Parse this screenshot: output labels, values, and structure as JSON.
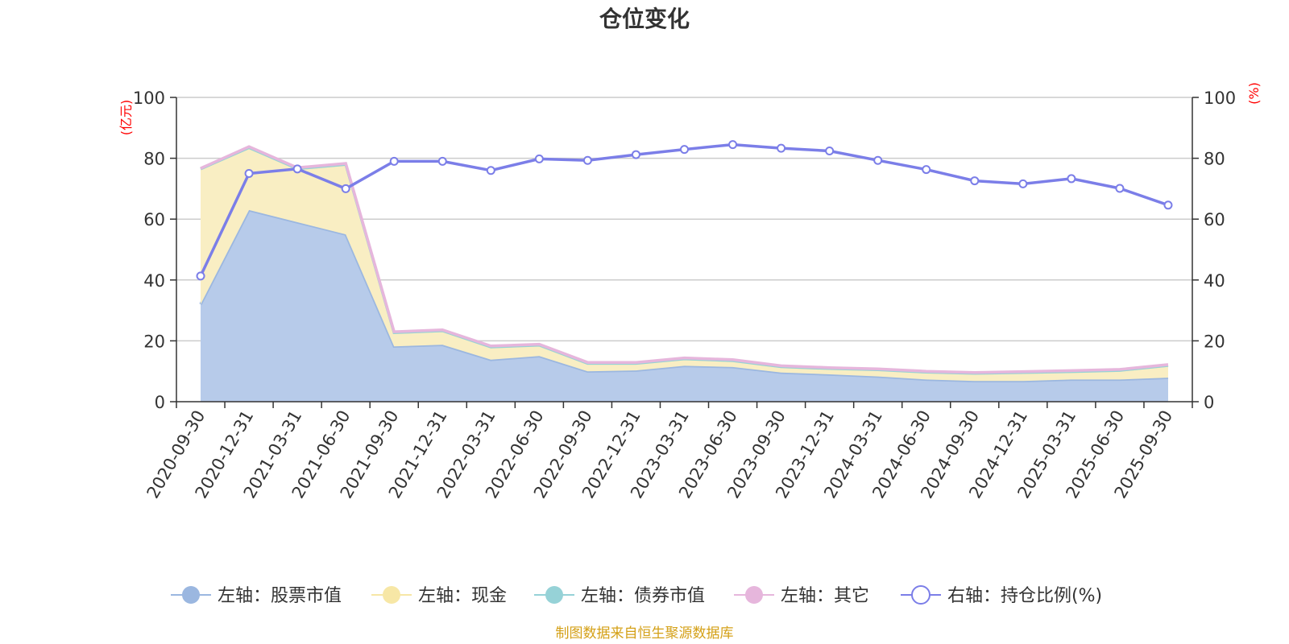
{
  "chart_data": {
    "type": "area",
    "title": "仓位变化",
    "left_unit": "(亿元)",
    "right_unit": "(%)",
    "categories": [
      "2020-09-30",
      "2020-12-31",
      "2021-03-31",
      "2021-06-30",
      "2021-09-30",
      "2021-12-31",
      "2022-03-31",
      "2022-06-30",
      "2022-09-30",
      "2022-12-31",
      "2023-03-31",
      "2023-06-30",
      "2023-09-30",
      "2023-12-31",
      "2024-03-31",
      "2024-06-30",
      "2024-09-30",
      "2024-12-31",
      "2025-03-31",
      "2025-06-30",
      "2025-09-30"
    ],
    "left_ylim": [
      0,
      100
    ],
    "left_yticks": [
      0,
      20,
      40,
      60,
      80,
      100
    ],
    "right_ylim": [
      0,
      100
    ],
    "right_yticks": [
      0,
      20,
      40,
      60,
      80,
      100
    ],
    "series": [
      {
        "name": "左轴：股票市值",
        "axis": "left",
        "stack": true,
        "color": "#9bb7e0",
        "fill": "#b7cbea",
        "values": [
          32,
          63,
          59,
          55,
          18.2,
          18.7,
          13.8,
          15,
          10,
          10.3,
          11.8,
          11.4,
          9.6,
          9,
          8.3,
          7.3,
          6.8,
          6.8,
          7.3,
          7.3,
          7.9
        ]
      },
      {
        "name": "左轴：现金",
        "axis": "left",
        "stack": true,
        "color": "#f7e7a6",
        "fill": "#f9eec3",
        "values": [
          44.5,
          20.5,
          17.6,
          23,
          4.5,
          4.6,
          4.2,
          3.6,
          2.6,
          2.3,
          2.3,
          2.1,
          1.9,
          1.9,
          2.2,
          2.4,
          2.5,
          2.8,
          2.6,
          3,
          4
        ]
      },
      {
        "name": "左轴：债券市值",
        "axis": "left",
        "stack": true,
        "color": "#96d2d7",
        "fill": "#b5e1e4",
        "values": [
          0,
          0,
          0,
          0,
          0,
          0,
          0,
          0,
          0,
          0,
          0,
          0,
          0,
          0,
          0,
          0,
          0,
          0,
          0,
          0,
          0
        ]
      },
      {
        "name": "左轴：其它",
        "axis": "left",
        "stack": true,
        "color": "#e6b6dc",
        "fill": "#f0d2ea",
        "values": [
          0.2,
          0.3,
          0.3,
          0.3,
          0.3,
          0.3,
          0.3,
          0.3,
          0.3,
          0.3,
          0.3,
          0.3,
          0.3,
          0.3,
          0.3,
          0.3,
          0.3,
          0.3,
          0.3,
          0.3,
          0.3
        ]
      },
      {
        "name": "右轴：持仓比例(%)",
        "axis": "right",
        "stack": false,
        "color": "#7b7ee8",
        "values": [
          41.3,
          75,
          76.5,
          70,
          79,
          79,
          76,
          79.8,
          79.3,
          81.2,
          82.9,
          84.5,
          83.3,
          82.4,
          79.3,
          76.3,
          72.6,
          71.6,
          73.3,
          70.1,
          64.6
        ]
      }
    ]
  },
  "footer": {
    "source": "制图数据来自恒生聚源数据库"
  }
}
